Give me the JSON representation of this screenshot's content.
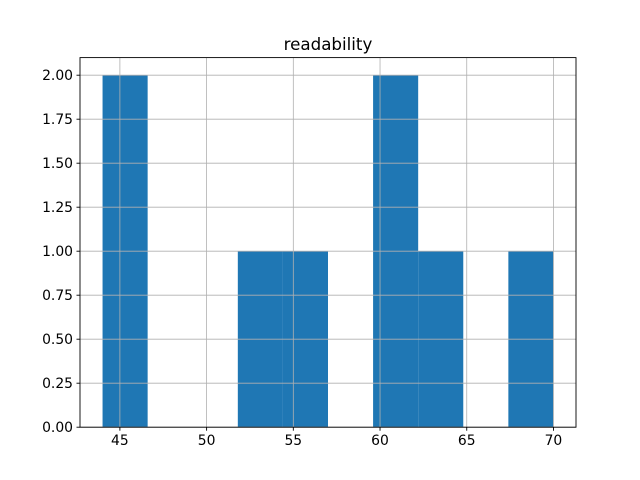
{
  "figure": {
    "background_color": "#ffffff"
  },
  "chart_data": {
    "type": "bar",
    "subtype": "histogram",
    "title": "readability",
    "xlabel": "",
    "ylabel": "",
    "bin_edges": [
      44.0,
      46.6,
      49.2,
      51.8,
      54.4,
      57.0,
      59.6,
      62.2,
      64.8,
      67.4,
      70.0
    ],
    "counts": [
      2,
      0,
      0,
      1,
      1,
      0,
      2,
      1,
      0,
      1
    ],
    "xlim": [
      42.7,
      71.3
    ],
    "ylim": [
      0,
      2.1
    ],
    "xticks": {
      "values": [
        45,
        50,
        55,
        60,
        65,
        70
      ],
      "labels": [
        "45",
        "50",
        "55",
        "60",
        "65",
        "70"
      ]
    },
    "yticks": {
      "values": [
        0.0,
        0.25,
        0.5,
        0.75,
        1.0,
        1.25,
        1.5,
        1.75,
        2.0
      ],
      "labels": [
        "0.00",
        "0.25",
        "0.50",
        "0.75",
        "1.00",
        "1.25",
        "1.50",
        "1.75",
        "2.00"
      ]
    },
    "grid": true,
    "grid_over_bars": true,
    "legend": null,
    "colors": {
      "bar_fill": "#1f77b4",
      "grid_line": "#b0b0b0",
      "spine": "#000000",
      "tick": "#000000",
      "background": "#ffffff"
    }
  }
}
